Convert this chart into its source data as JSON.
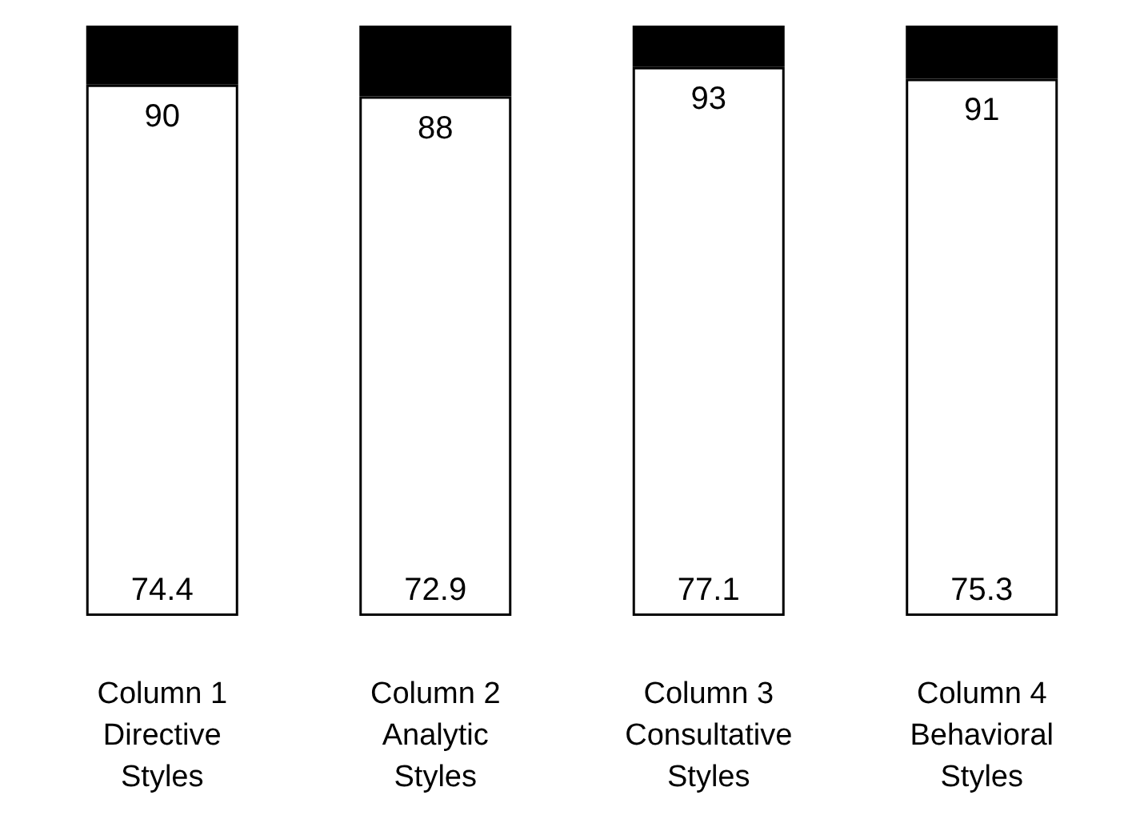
{
  "chart_data": {
    "type": "bar",
    "stacked": true,
    "tick_labels": "x",
    "ylim": [
      0,
      100
    ],
    "categories": [
      "Column 1\nDirective\nStyles",
      "Column 2\nAnalytic\nStyles",
      "Column 3\nConsultative\nStyles",
      "Column 4\nBehavioral\nStyles"
    ],
    "series": [
      {
        "color": "#ffffff",
        "values": [
          90,
          88,
          93,
          91
        ],
        "value_labels": [
          "90",
          "88",
          "93",
          "91"
        ]
      },
      {
        "color": "#000000",
        "values": [
          10,
          12,
          7,
          9
        ]
      }
    ],
    "annotations": [
      {
        "text": "74.4",
        "x": "Column 1\nDirective\nStyles",
        "y": 0
      },
      {
        "text": "72.9",
        "x": "Column 2\nAnalytic\nStyles",
        "y": 0
      },
      {
        "text": "77.1",
        "x": "Column 3\nConsultative\nStyles",
        "y": 0
      },
      {
        "text": "75.3",
        "x": "Column 4\nBehavioral\nStyles",
        "y": 0
      }
    ]
  }
}
